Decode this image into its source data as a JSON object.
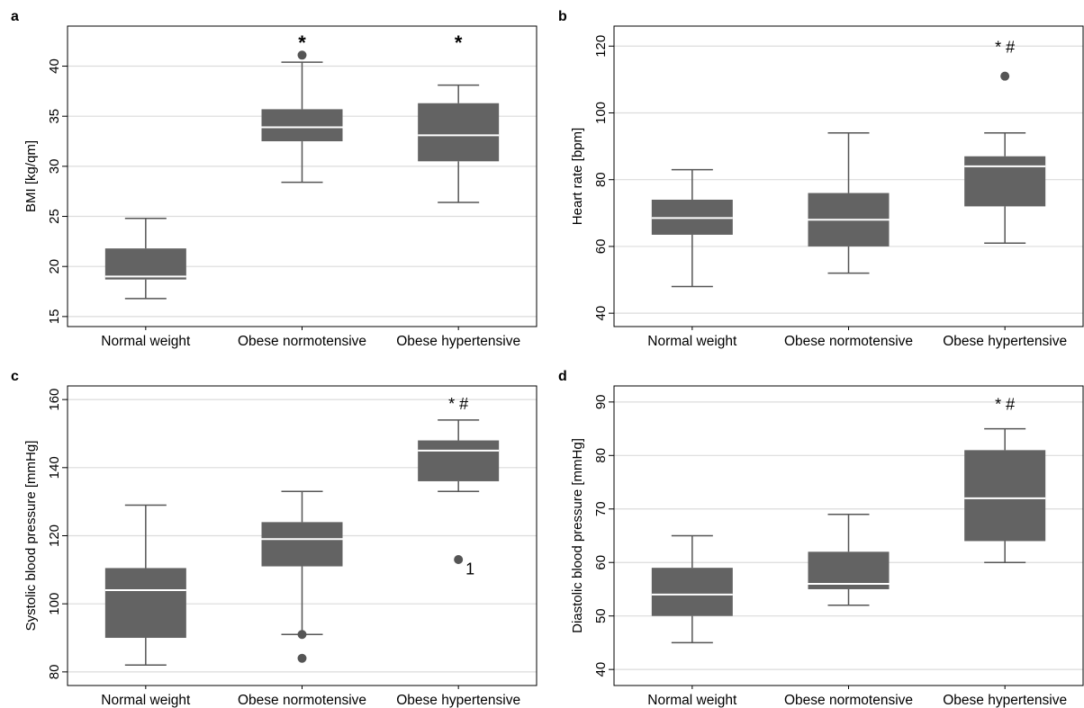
{
  "chart_data": [
    {
      "type": "box",
      "panel_label": "a",
      "categories": [
        "Normal weight",
        "Obese normotensive",
        "Obese hypertensive"
      ],
      "ylabel": "BMI [kg/qm]",
      "ylim": [
        14,
        44
      ],
      "yticks": [
        15,
        20,
        25,
        30,
        35,
        40
      ],
      "grid": true,
      "boxes": [
        {
          "whisker_low": 16.8,
          "q1": 18.7,
          "median": 19.0,
          "q3": 21.8,
          "whisker_high": 24.8,
          "outliers": []
        },
        {
          "whisker_low": 28.4,
          "q1": 32.5,
          "median": 33.9,
          "q3": 35.7,
          "whisker_high": 40.4,
          "outliers": [
            41.1
          ]
        },
        {
          "whisker_low": 26.4,
          "q1": 30.5,
          "median": 33.1,
          "q3": 36.3,
          "whisker_high": 38.1,
          "outliers": []
        }
      ],
      "annotations": [
        {
          "category": 1,
          "text": "*",
          "y": 42.3
        },
        {
          "category": 2,
          "text": "*",
          "y": 42.3
        }
      ]
    },
    {
      "type": "box",
      "panel_label": "b",
      "categories": [
        "Normal weight",
        "Obese normotensive",
        "Obese hypertensive"
      ],
      "ylabel": "Heart rate [bpm]",
      "ylim": [
        36,
        126
      ],
      "yticks": [
        40,
        60,
        80,
        100,
        120
      ],
      "grid": true,
      "boxes": [
        {
          "whisker_low": 48,
          "q1": 63.5,
          "median": 68.5,
          "q3": 74,
          "whisker_high": 83,
          "outliers": []
        },
        {
          "whisker_low": 52,
          "q1": 60,
          "median": 68,
          "q3": 76,
          "whisker_high": 94,
          "outliers": []
        },
        {
          "whisker_low": 61,
          "q1": 72,
          "median": 84,
          "q3": 87,
          "whisker_high": 94,
          "outliers": [
            111
          ]
        }
      ],
      "annotations": [
        {
          "category": 2,
          "text": "* #",
          "y": 120
        }
      ]
    },
    {
      "type": "box",
      "panel_label": "c",
      "categories": [
        "Normal weight",
        "Obese normotensive",
        "Obese hypertensive"
      ],
      "ylabel": "Systolic blood pressure [mmHg]",
      "ylim": [
        76,
        164
      ],
      "yticks": [
        80,
        100,
        120,
        140,
        160
      ],
      "grid": true,
      "boxes": [
        {
          "whisker_low": 82,
          "q1": 90,
          "median": 104,
          "q3": 110.5,
          "whisker_high": 129,
          "outliers": []
        },
        {
          "whisker_low": 91,
          "q1": 111,
          "median": 119,
          "q3": 124,
          "whisker_high": 133,
          "outliers": [
            91,
            84
          ]
        },
        {
          "whisker_low": 133,
          "q1": 136,
          "median": 145,
          "q3": 148,
          "whisker_high": 154,
          "outliers": [
            113
          ]
        }
      ],
      "annotations": [
        {
          "category": 2,
          "text": "* #",
          "y": 159
        },
        {
          "category": 2,
          "text": "1",
          "y": 111
        }
      ]
    },
    {
      "type": "box",
      "panel_label": "d",
      "categories": [
        "Normal weight",
        "Obese normotensive",
        "Obese hypertensive"
      ],
      "ylabel": "Diastolic blood pressure [mmHg]",
      "ylim": [
        37,
        93
      ],
      "yticks": [
        40,
        50,
        60,
        70,
        80,
        90
      ],
      "grid": true,
      "boxes": [
        {
          "whisker_low": 45,
          "q1": 50,
          "median": 54,
          "q3": 59,
          "whisker_high": 65,
          "outliers": []
        },
        {
          "whisker_low": 52,
          "q1": 55,
          "median": 56,
          "q3": 62,
          "whisker_high": 69,
          "outliers": []
        },
        {
          "whisker_low": 60,
          "q1": 64,
          "median": 72,
          "q3": 81,
          "whisker_high": 85,
          "outliers": []
        }
      ],
      "annotations": [
        {
          "category": 2,
          "text": "* #",
          "y": 89.7
        }
      ]
    }
  ],
  "colors": {
    "box_fill": "#636363",
    "median_line": "#ffffff",
    "whisker": "#555555",
    "outlier": "#555555",
    "grid": "#dcdcdc",
    "frame": "#000000"
  }
}
